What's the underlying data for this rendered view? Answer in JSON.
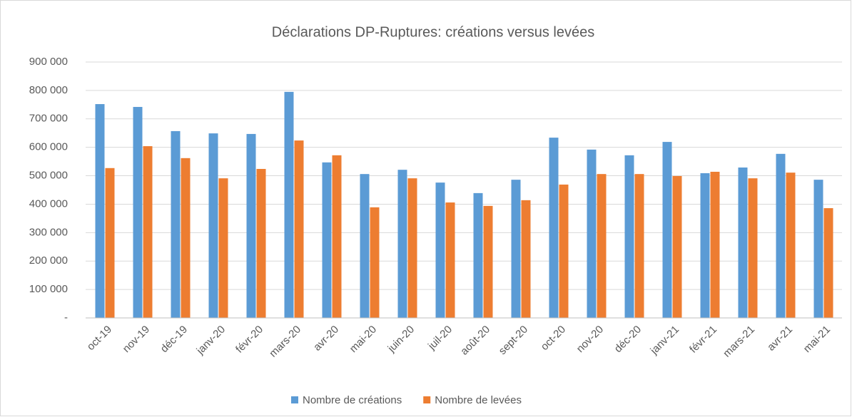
{
  "chart_data": {
    "type": "bar",
    "title": "Déclarations DP-Ruptures: créations versus levées",
    "categories": [
      "oct-19",
      "nov-19",
      "déc-19",
      "janv-20",
      "févr-20",
      "mars-20",
      "avr-20",
      "mai-20",
      "juin-20",
      "juil-20",
      "août-20",
      "sept-20",
      "oct-20",
      "nov-20",
      "déc-20",
      "janv-21",
      "févr-21",
      "mars-21",
      "avr-21",
      "mai-21"
    ],
    "series": [
      {
        "name": "Nombre de créations",
        "color": "#5b9bd5",
        "values": [
          752000,
          742000,
          657000,
          649000,
          647000,
          795000,
          547000,
          506000,
          521000,
          476000,
          439000,
          486000,
          634000,
          592000,
          572000,
          619000,
          509000,
          529000,
          577000,
          486000
        ]
      },
      {
        "name": "Nombre de levées",
        "color": "#ed7d31",
        "values": [
          527000,
          604000,
          562000,
          491000,
          524000,
          624000,
          572000,
          389000,
          491000,
          406000,
          394000,
          414000,
          469000,
          506000,
          506000,
          499000,
          514000,
          491000,
          511000,
          386000
        ]
      }
    ],
    "ylim": [
      0,
      900000
    ],
    "yticks": [
      {
        "value": 0,
        "label": "-"
      },
      {
        "value": 100000,
        "label": "100 000"
      },
      {
        "value": 200000,
        "label": "200 000"
      },
      {
        "value": 300000,
        "label": "300 000"
      },
      {
        "value": 400000,
        "label": "400 000"
      },
      {
        "value": 500000,
        "label": "500 000"
      },
      {
        "value": 600000,
        "label": "600 000"
      },
      {
        "value": 700000,
        "label": "700 000"
      },
      {
        "value": 800000,
        "label": "800 000"
      },
      {
        "value": 900000,
        "label": "900 000"
      }
    ],
    "grid": true,
    "legend": "bottom"
  }
}
